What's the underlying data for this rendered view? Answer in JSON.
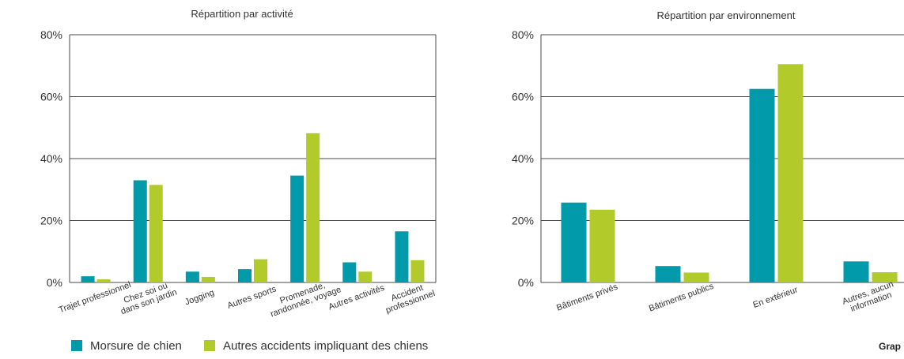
{
  "colors": {
    "series1": "#009aaa",
    "series2": "#b2cb2a",
    "grid": "#4a4a4a",
    "text": "#333333"
  },
  "legend": {
    "series1_label": "Morsure de chien",
    "series2_label": "Autres accidents impliquant des chiens"
  },
  "footer": {
    "text": "Grap"
  },
  "chart_data": [
    {
      "type": "bar",
      "title": "Répartition par activité",
      "categories": [
        [
          "Trajet professionnel"
        ],
        [
          "Chez soi ou",
          "dans son jardin"
        ],
        [
          "Jogging"
        ],
        [
          "Autres sports"
        ],
        [
          "Promenade,",
          "randonnée, voyage"
        ],
        [
          "Autres activités"
        ],
        [
          "Accident",
          "professionnel"
        ]
      ],
      "series": [
        {
          "name": "Morsure de chien",
          "values": [
            2,
            33,
            3.5,
            4.3,
            34.5,
            6.5,
            16.5
          ]
        },
        {
          "name": "Autres accidents impliquant des chiens",
          "values": [
            1,
            31.5,
            1.8,
            7.5,
            48.2,
            3.5,
            7.2
          ]
        }
      ],
      "ylim": [
        0,
        80
      ],
      "yticks": [
        "0%",
        "20%",
        "40%",
        "60%",
        "80%"
      ],
      "grid": true
    },
    {
      "type": "bar",
      "title": "Répartition par environnement",
      "categories": [
        [
          "Bâtiments privés"
        ],
        [
          "Bâtiments publics"
        ],
        [
          "En extérieur"
        ],
        [
          "Autres, aucun",
          "information"
        ]
      ],
      "series": [
        {
          "name": "Morsure de chien",
          "values": [
            25.8,
            5.3,
            62.5,
            6.8
          ]
        },
        {
          "name": "Autres accidents impliquant des chiens",
          "values": [
            23.5,
            3.2,
            70.5,
            3.3
          ]
        }
      ],
      "ylim": [
        0,
        80
      ],
      "yticks": [
        "0%",
        "20%",
        "40%",
        "60%",
        "80%"
      ],
      "grid": true
    }
  ]
}
